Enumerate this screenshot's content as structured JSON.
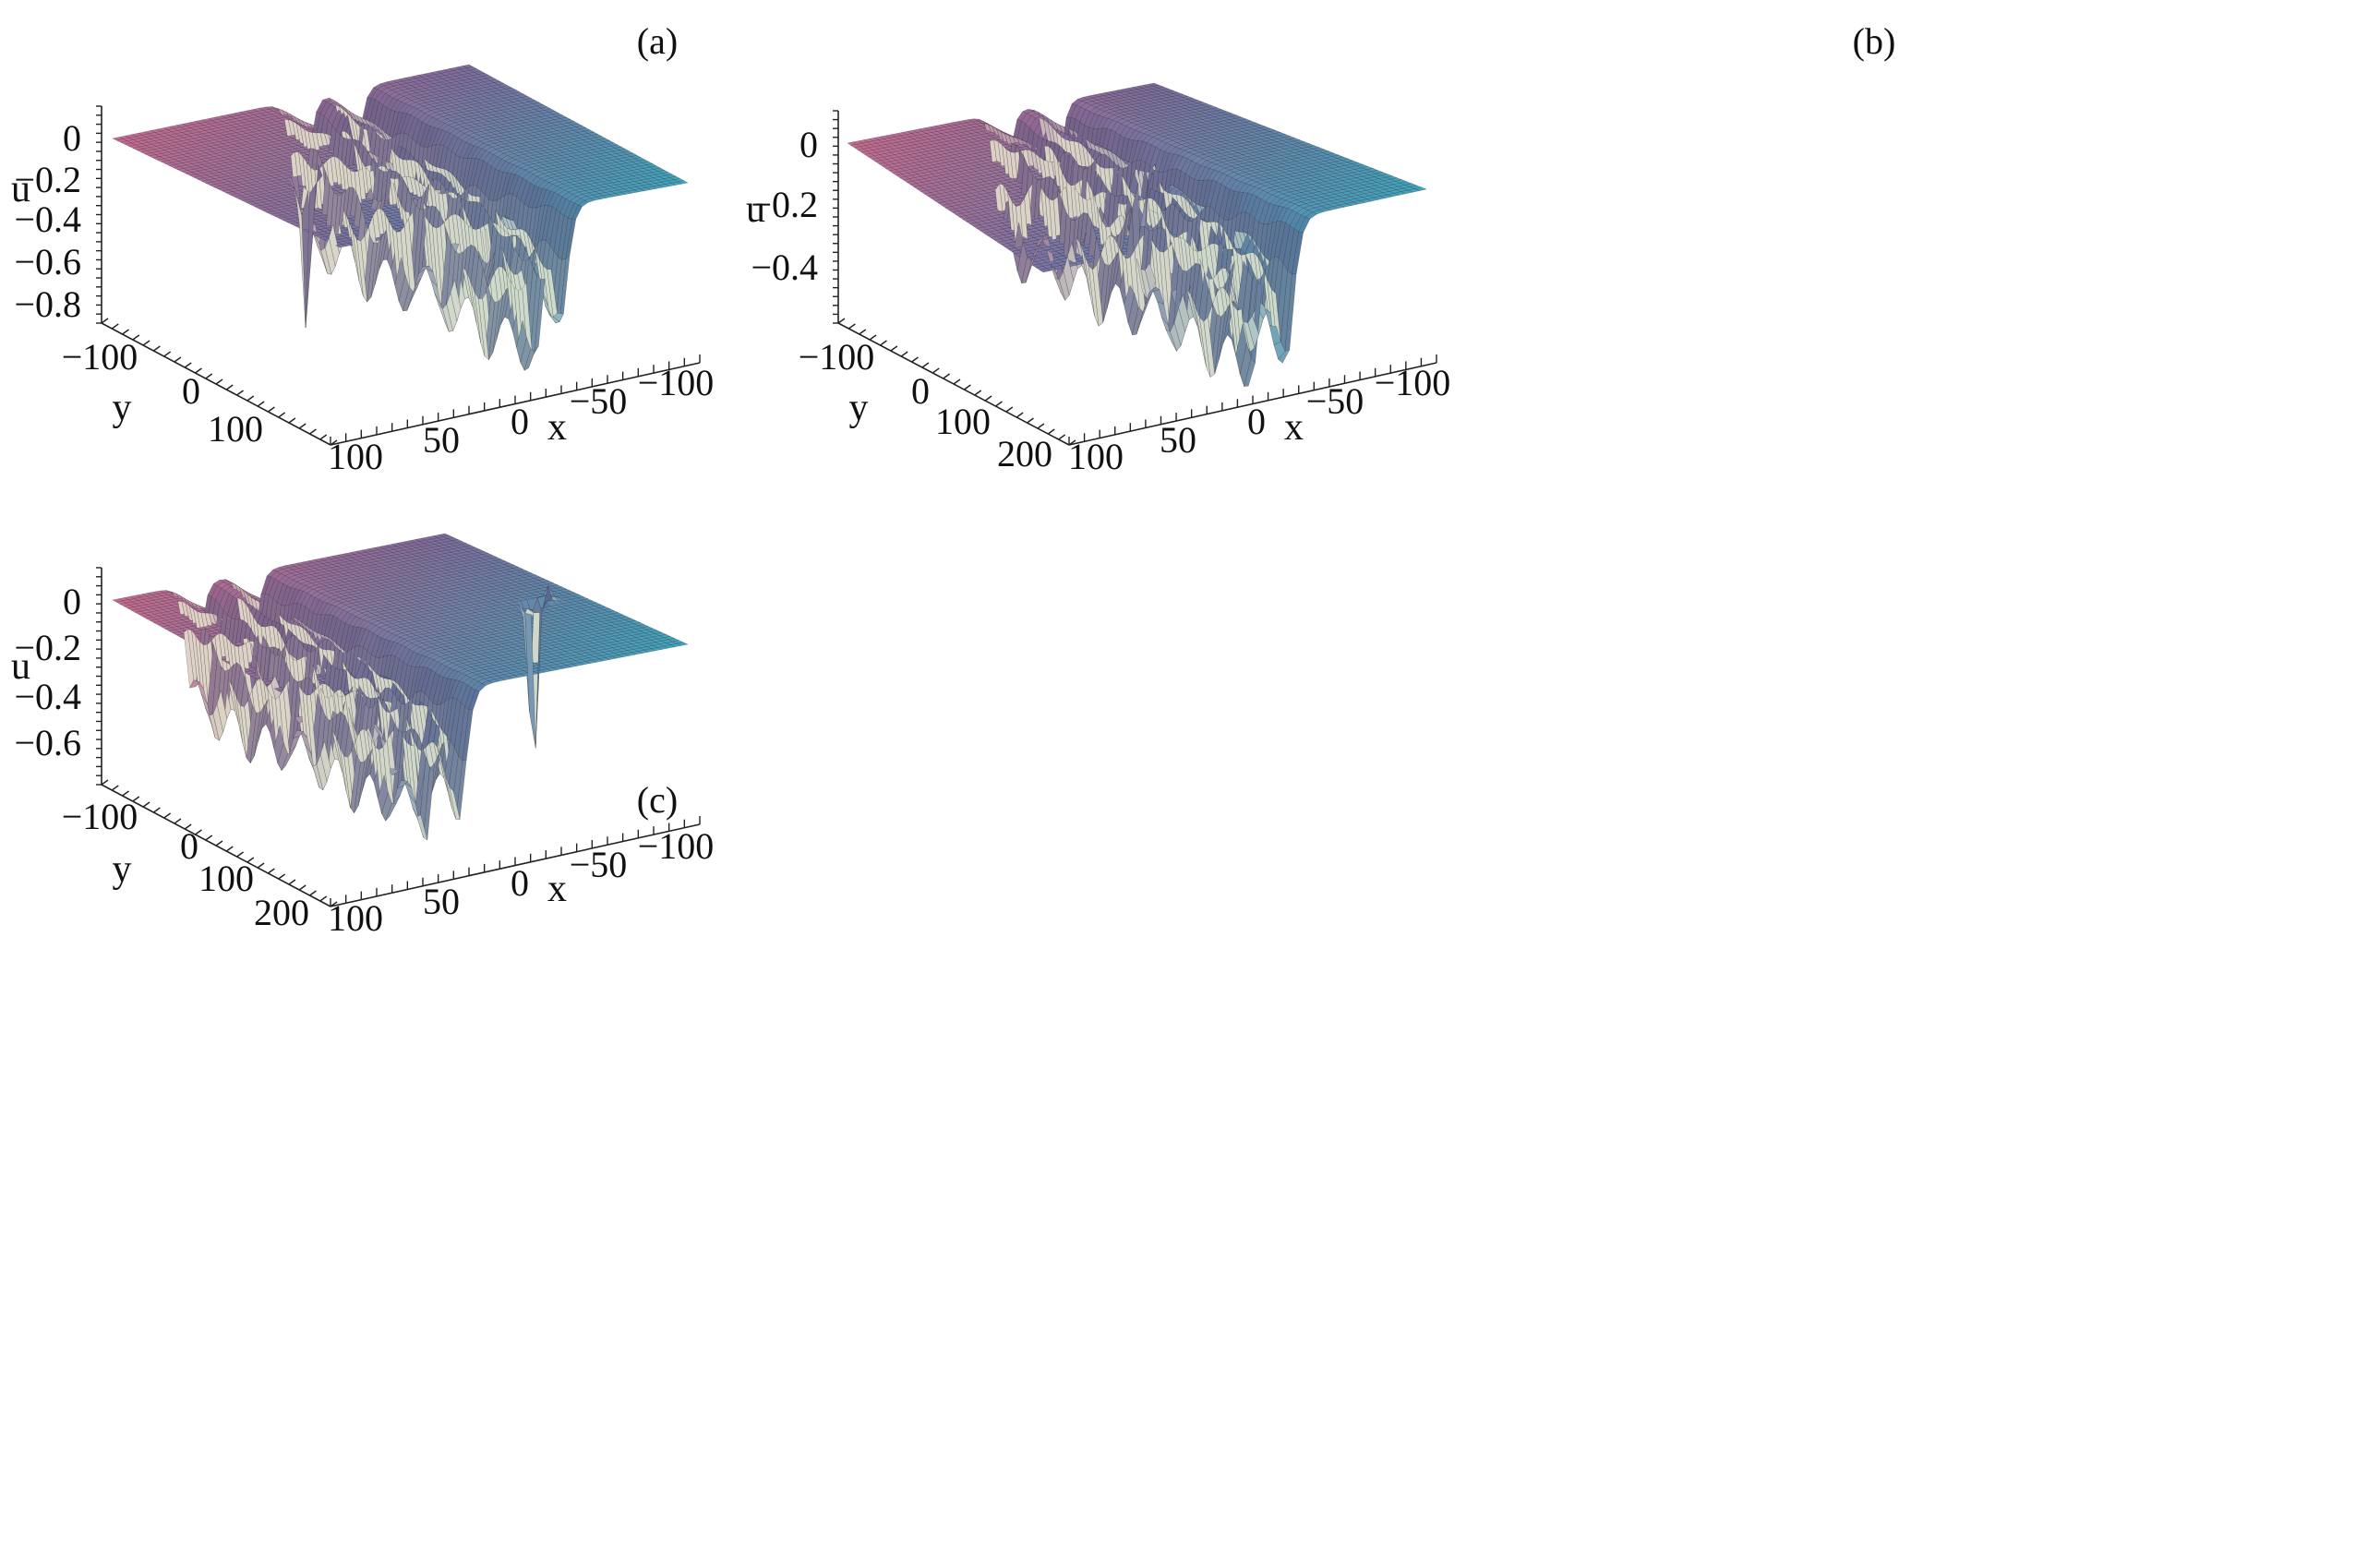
{
  "figure": {
    "panels": [
      "(a)",
      "(b)",
      "(c)"
    ]
  },
  "chart_data": [
    {
      "type": "surface",
      "panel": "(a)",
      "zlabel": "u",
      "xlabel": "x",
      "ylabel": "y",
      "zlim": [
        -0.85,
        0.1
      ],
      "xlim": [
        -120,
        110
      ],
      "ylim": [
        -150,
        180
      ],
      "z_ticks": [
        "0",
        "−0.2",
        "−0.4",
        "−0.6",
        "−0.8"
      ],
      "x_ticks": [
        "−100",
        "−50",
        "0",
        "50",
        "100"
      ],
      "y_ticks": [
        "−100",
        "0",
        "100"
      ],
      "features": {
        "line_solitons": [
          {
            "x_position": 30,
            "min_u": -0.58
          },
          {
            "x_position": 5,
            "min_u": -0.77
          }
        ],
        "lump": {
          "x": -70,
          "y": 20,
          "min_u": -0.74,
          "peak_u": 0.1
        }
      }
    },
    {
      "type": "surface",
      "panel": "(b)",
      "zlabel": "u",
      "xlabel": "x",
      "ylabel": "y",
      "zlim": [
        -0.55,
        0.1
      ],
      "xlim": [
        -120,
        110
      ],
      "ylim": [
        -150,
        230
      ],
      "z_ticks": [
        "0",
        "−0.2",
        "−0.4"
      ],
      "x_ticks": [
        "−100",
        "−50",
        "0",
        "50",
        "100"
      ],
      "y_ticks": [
        "−100",
        "0",
        "100",
        "200"
      ],
      "features": {
        "line_solitons": [
          {
            "x_position": 30,
            "min_u": -0.48
          },
          {
            "x_position": 0,
            "min_u": -0.52
          }
        ],
        "lump": {
          "x": 10,
          "y": 40,
          "min_u": -0.5,
          "peak_u": 0.08
        }
      }
    },
    {
      "type": "surface",
      "panel": "(c)",
      "zlabel": "u",
      "xlabel": "x",
      "ylabel": "y",
      "zlim": [
        -0.75,
        0.1
      ],
      "xlim": [
        -120,
        110
      ],
      "ylim": [
        -150,
        230
      ],
      "z_ticks": [
        "0",
        "−0.2",
        "−0.4",
        "−0.6"
      ],
      "x_ticks": [
        "−100",
        "−50",
        "0",
        "50",
        "100"
      ],
      "y_ticks": [
        "−100",
        "0",
        "100",
        "200"
      ],
      "features": {
        "line_solitons": [
          {
            "x_position": -30,
            "min_u": -0.55
          },
          {
            "x_position": -60,
            "min_u": -0.62
          }
        ],
        "lump": {
          "x": 80,
          "y": 60,
          "min_u": -0.7,
          "peak_u": 0.1
        }
      }
    }
  ],
  "colors": {
    "corner_left": "#c76c90",
    "corner_back": "#7e6c9e",
    "corner_right": "#3fa7bf",
    "corner_front": "#7873a4",
    "highlight": "#f2f0d6",
    "mesh": "#1a1a1a",
    "axis": "#222222"
  }
}
